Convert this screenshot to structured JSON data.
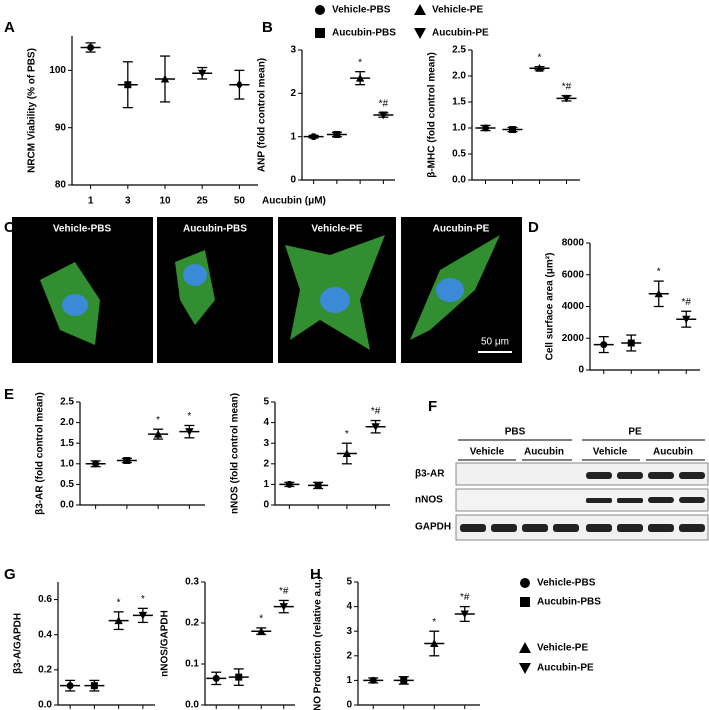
{
  "panel_labels": [
    "A",
    "B",
    "C",
    "D",
    "E",
    "F",
    "G",
    "H"
  ],
  "images": {
    "labels": [
      "Vehicle-PBS",
      "Aucubin-PBS",
      "Vehicle-PE",
      "Aucubin-PE"
    ],
    "scale_bar": "50 μm"
  },
  "blot": {
    "groups": [
      "PBS",
      "PE"
    ],
    "treatments": [
      "Vehicle",
      "Aucubin",
      "Vehicle",
      "Aucubin"
    ],
    "bands": [
      "β3-AR",
      "nNOS",
      "GAPDH"
    ]
  },
  "chart_data": [
    {
      "type": "dot",
      "ylabel": "NRCM Viability (% of PBS)",
      "xlabel": "Aucubin (μM)",
      "color": "#000000",
      "categories": [
        "1",
        "3",
        "10",
        "25",
        "50"
      ],
      "markers": [
        "circle",
        "square",
        "triangle-up",
        "triangle-down",
        "diamond"
      ],
      "values": [
        104,
        97.5,
        98.5,
        99.5,
        97.5
      ],
      "errors": [
        0.8,
        4,
        4,
        1,
        2.5
      ],
      "annotations": [
        null,
        null,
        null,
        null,
        null
      ],
      "ylim": [
        80,
        106
      ],
      "yticks": [
        80,
        90,
        100
      ]
    },
    {
      "type": "dot",
      "ylabel": "ANP (fold control mean)",
      "color": "#000000",
      "categories": [
        null,
        null,
        null,
        null
      ],
      "markers": [
        "circle",
        "square",
        "triangle-up",
        "triangle-down"
      ],
      "values": [
        1.0,
        1.05,
        2.35,
        1.5
      ],
      "errors": [
        0.03,
        0.05,
        0.15,
        0.05
      ],
      "annotations": [
        null,
        null,
        "*",
        "*#"
      ],
      "ylim": [
        0,
        3
      ],
      "yticks": [
        0,
        1,
        2,
        3
      ],
      "legend": [
        {
          "name": "Vehicle-PBS",
          "marker": "circle"
        },
        {
          "name": "Vehicle-PE",
          "marker": "triangle-up"
        },
        {
          "name": "Aucubin-PBS",
          "marker": "square"
        },
        {
          "name": "Aucubin-PE",
          "marker": "triangle-down"
        }
      ]
    },
    {
      "type": "dot",
      "ylabel": "β-MHC (fold control mean)",
      "color": "#000000",
      "categories": [
        null,
        null,
        null,
        null
      ],
      "markers": [
        "circle",
        "square",
        "triangle-up",
        "triangle-down"
      ],
      "values": [
        1.0,
        0.97,
        2.15,
        1.57
      ],
      "errors": [
        0.05,
        0.04,
        0.03,
        0.05
      ],
      "annotations": [
        null,
        null,
        "*",
        "*#"
      ],
      "ylim": [
        0,
        2.5
      ],
      "yticks": [
        {
          "value": 0,
          "label": "0.0"
        },
        0.5,
        {
          "value": 1,
          "label": "1.0"
        },
        1.5,
        {
          "value": 2,
          "label": "2.0"
        },
        2.5
      ]
    },
    {
      "type": "dot",
      "ylabel": "Cell surface area (μm²)",
      "color": "#000000",
      "categories": [
        null,
        null,
        null,
        null
      ],
      "markers": [
        "circle",
        "square",
        "triangle-up",
        "triangle-down"
      ],
      "values": [
        1600,
        1700,
        4800,
        3200
      ],
      "errors": [
        500,
        500,
        800,
        500
      ],
      "annotations": [
        null,
        null,
        "*",
        "*#"
      ],
      "ylim": [
        0,
        8000
      ],
      "yticks": [
        0,
        2000,
        4000,
        6000,
        8000
      ]
    },
    {
      "type": "dot",
      "ylabel": "β3-AR (fold control mean)",
      "color": "#000000",
      "categories": [
        null,
        null,
        null,
        null
      ],
      "markers": [
        "circle",
        "square",
        "triangle-up",
        "triangle-down"
      ],
      "values": [
        1.0,
        1.08,
        1.72,
        1.78
      ],
      "errors": [
        0.07,
        0.05,
        0.12,
        0.15
      ],
      "annotations": [
        null,
        null,
        "*",
        "*"
      ],
      "ylim": [
        0,
        2.5
      ],
      "yticks": [
        {
          "value": 0,
          "label": "0.0"
        },
        0.5,
        {
          "value": 1,
          "label": "1.0"
        },
        1.5,
        {
          "value": 2,
          "label": "2.0"
        },
        2.5
      ]
    },
    {
      "type": "dot",
      "ylabel": "nNOS (fold control mean)",
      "color": "#000000",
      "categories": [
        null,
        null,
        null,
        null
      ],
      "markers": [
        "circle",
        "square",
        "triangle-up",
        "triangle-down"
      ],
      "values": [
        1.0,
        0.95,
        2.5,
        3.8
      ],
      "errors": [
        0.1,
        0.15,
        0.5,
        0.3
      ],
      "annotations": [
        null,
        null,
        "*",
        "*#"
      ],
      "ylim": [
        0,
        5
      ],
      "yticks": [
        0,
        1,
        2,
        3,
        4,
        5
      ]
    },
    {
      "type": "dot",
      "ylabel": "β3-A/GAPDH",
      "color": "#000000",
      "categories": [
        null,
        null,
        null,
        null
      ],
      "markers": [
        "circle",
        "square",
        "triangle-up",
        "triangle-down"
      ],
      "values": [
        0.11,
        0.11,
        0.48,
        0.51
      ],
      "errors": [
        0.03,
        0.03,
        0.05,
        0.04
      ],
      "annotations": [
        null,
        null,
        "*",
        "*"
      ],
      "ylim": [
        0,
        0.7
      ],
      "yticks": [
        {
          "value": 0,
          "label": "0.0"
        },
        0.2,
        0.4,
        0.6
      ]
    },
    {
      "type": "dot",
      "ylabel": "nNOS/GAPDH",
      "color": "#000000",
      "categories": [
        null,
        null,
        null,
        null
      ],
      "markers": [
        "circle",
        "square",
        "triangle-up",
        "triangle-down"
      ],
      "values": [
        0.065,
        0.068,
        0.18,
        0.24
      ],
      "errors": [
        0.015,
        0.02,
        0.008,
        0.015
      ],
      "annotations": [
        null,
        null,
        "*",
        "*#"
      ],
      "ylim": [
        0,
        0.3
      ],
      "yticks": [
        {
          "value": 0,
          "label": "0.0"
        },
        0.1,
        0.2,
        0.3
      ]
    },
    {
      "type": "dot",
      "ylabel": "NO Production (relative a.u.)",
      "color": "#000000",
      "categories": [
        null,
        null,
        null,
        null
      ],
      "markers": [
        "circle",
        "square",
        "triangle-up",
        "triangle-down"
      ],
      "values": [
        1.0,
        1.0,
        2.5,
        3.7
      ],
      "errors": [
        0.1,
        0.15,
        0.5,
        0.3
      ],
      "annotations": [
        null,
        null,
        "*",
        "*#"
      ],
      "ylim": [
        0,
        5
      ],
      "yticks": [
        0,
        1,
        2,
        3,
        4,
        5
      ],
      "legend": [
        {
          "name": "Vehicle-PBS",
          "marker": "circle"
        },
        {
          "name": "Aucubin-PBS",
          "marker": "square"
        },
        {
          "name": "Vehicle-PE",
          "marker": "triangle-up"
        },
        {
          "name": "Aucubin-PE",
          "marker": "triangle-down"
        }
      ]
    }
  ]
}
